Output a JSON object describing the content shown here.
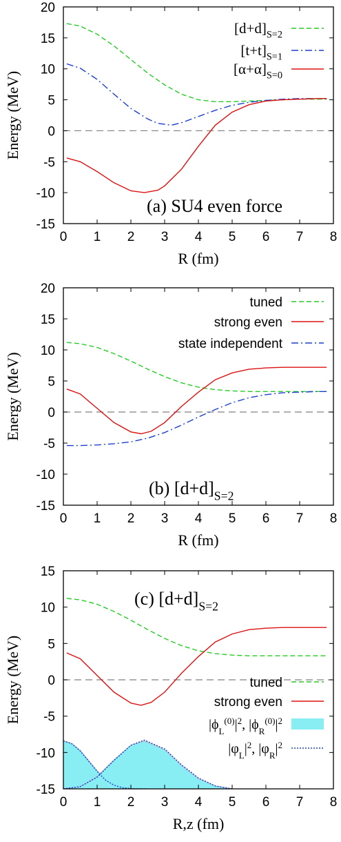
{
  "chart_data": [
    {
      "type": "line",
      "panel_label": "(a) SU4 even force",
      "xlabel": "R (fm)",
      "ylabel": "Energy (MeV)",
      "xlim": [
        0,
        8
      ],
      "ylim": [
        -15,
        20
      ],
      "xticks": [
        "0",
        "1",
        "2",
        "3",
        "4",
        "5",
        "6",
        "7",
        "8"
      ],
      "yticks": [
        "20",
        "15",
        "10",
        "5",
        "0",
        "-5",
        "-10",
        "-15"
      ],
      "legend_position": "top-right",
      "reference_line": {
        "y": 0,
        "style": "dashed",
        "color": "#808080"
      },
      "series": [
        {
          "name": "[d+d]",
          "name_subscript": "S=2",
          "color": "#22cc22",
          "dash": "dashed",
          "x": [
            0.1,
            0.5,
            1.0,
            1.5,
            2.0,
            2.5,
            3.0,
            3.5,
            4.0,
            4.5,
            5.0,
            5.5,
            6.0,
            6.5,
            7.0,
            7.5,
            7.8
          ],
          "y": [
            17.3,
            16.9,
            15.6,
            13.7,
            11.5,
            9.3,
            7.4,
            5.9,
            5.0,
            4.7,
            4.7,
            4.8,
            4.9,
            5.0,
            5.1,
            5.1,
            5.1
          ]
        },
        {
          "name": "[t+t]",
          "name_subscript": "S=1",
          "color": "#1a3fd0",
          "dash": "dashdot",
          "x": [
            0.1,
            0.5,
            1.0,
            1.5,
            2.0,
            2.5,
            2.8,
            3.2,
            3.5,
            4.0,
            4.5,
            5.0,
            5.5,
            6.0,
            6.5,
            7.0,
            7.5,
            7.8
          ],
          "y": [
            10.8,
            10.1,
            8.3,
            5.9,
            3.6,
            1.9,
            1.2,
            0.9,
            1.3,
            2.3,
            3.3,
            4.1,
            4.6,
            4.9,
            5.1,
            5.2,
            5.2,
            5.2
          ]
        },
        {
          "name": "[α+α]",
          "name_subscript": "S=0",
          "color": "#dd1111",
          "dash": "solid",
          "x": [
            0.1,
            0.5,
            1.0,
            1.5,
            2.0,
            2.4,
            2.8,
            3.0,
            3.5,
            4.0,
            4.5,
            5.0,
            5.5,
            6.0,
            6.5,
            7.0,
            7.5,
            7.8
          ],
          "y": [
            -4.4,
            -5.0,
            -6.6,
            -8.4,
            -9.7,
            -10.0,
            -9.6,
            -8.9,
            -6.2,
            -2.5,
            0.9,
            3.0,
            4.2,
            4.8,
            5.0,
            5.1,
            5.2,
            5.2
          ]
        }
      ]
    },
    {
      "type": "line",
      "panel_label": "(b) [d+d]",
      "panel_label_subscript": "S=2",
      "xlabel": "R (fm)",
      "ylabel": "Energy (MeV)",
      "xlim": [
        0,
        8
      ],
      "ylim": [
        -15,
        20
      ],
      "xticks": [
        "0",
        "1",
        "2",
        "3",
        "4",
        "5",
        "6",
        "7",
        "8"
      ],
      "yticks": [
        "20",
        "15",
        "10",
        "5",
        "0",
        "-5",
        "-10",
        "-15"
      ],
      "legend_position": "top-right",
      "reference_line": {
        "y": 0,
        "style": "dashed",
        "color": "#808080"
      },
      "series": [
        {
          "name": "tuned",
          "color": "#22cc22",
          "dash": "dashed",
          "x": [
            0.1,
            0.5,
            1.0,
            1.5,
            2.0,
            2.5,
            3.0,
            3.5,
            4.0,
            4.5,
            5.0,
            5.5,
            6.0,
            6.5,
            7.0,
            7.5,
            7.8
          ],
          "y": [
            11.2,
            11.0,
            10.4,
            9.4,
            8.2,
            6.9,
            5.7,
            4.7,
            4.0,
            3.6,
            3.4,
            3.3,
            3.3,
            3.3,
            3.3,
            3.3,
            3.3
          ]
        },
        {
          "name": "strong even",
          "color": "#dd1111",
          "dash": "solid",
          "x": [
            0.1,
            0.5,
            1.0,
            1.5,
            2.0,
            2.3,
            2.6,
            3.0,
            3.5,
            4.0,
            4.5,
            5.0,
            5.5,
            6.0,
            6.5,
            7.0,
            7.5,
            7.8
          ],
          "y": [
            3.7,
            2.9,
            0.6,
            -1.7,
            -3.2,
            -3.5,
            -3.1,
            -1.7,
            0.9,
            3.2,
            5.2,
            6.3,
            6.9,
            7.1,
            7.2,
            7.2,
            7.2,
            7.2
          ]
        },
        {
          "name": "state independent",
          "color": "#1a3fd0",
          "dash": "dashdot",
          "x": [
            0.1,
            0.5,
            1.0,
            1.5,
            2.0,
            2.5,
            3.0,
            3.5,
            4.0,
            4.5,
            5.0,
            5.5,
            6.0,
            6.5,
            7.0,
            7.5,
            7.8
          ],
          "y": [
            -5.4,
            -5.4,
            -5.3,
            -5.1,
            -4.8,
            -4.2,
            -3.3,
            -2.1,
            -0.8,
            0.4,
            1.5,
            2.3,
            2.8,
            3.1,
            3.2,
            3.3,
            3.3
          ]
        }
      ]
    },
    {
      "type": "line",
      "panel_label": "(c) [d+d]",
      "panel_label_subscript": "S=2",
      "xlabel": "R,z (fm)",
      "ylabel": "Energy (MeV)",
      "xlim": [
        0,
        8
      ],
      "ylim": [
        -15,
        15
      ],
      "xticks": [
        "0",
        "1",
        "2",
        "3",
        "4",
        "5",
        "6",
        "7",
        "8"
      ],
      "yticks": [
        "15",
        "10",
        "5",
        "0",
        "-5",
        "-10",
        "-15"
      ],
      "legend_position": "bottom-right",
      "reference_line": {
        "y": 0,
        "style": "dashed",
        "color": "#808080"
      },
      "series": [
        {
          "name": "tuned",
          "color": "#22cc22",
          "dash": "dashed",
          "x": [
            0.1,
            0.5,
            1.0,
            1.5,
            2.0,
            2.5,
            3.0,
            3.5,
            4.0,
            4.5,
            5.0,
            5.5,
            6.0,
            6.5,
            7.0,
            7.5,
            7.8
          ],
          "y": [
            11.2,
            11.0,
            10.4,
            9.4,
            8.2,
            6.9,
            5.7,
            4.7,
            4.0,
            3.6,
            3.4,
            3.3,
            3.3,
            3.3,
            3.3,
            3.3,
            3.3
          ]
        },
        {
          "name": "strong even",
          "color": "#dd1111",
          "dash": "solid",
          "x": [
            0.1,
            0.5,
            1.0,
            1.5,
            2.0,
            2.3,
            2.6,
            3.0,
            3.5,
            4.0,
            4.5,
            5.0,
            5.5,
            6.0,
            6.5,
            7.0,
            7.5,
            7.8
          ],
          "y": [
            3.7,
            2.9,
            0.6,
            -1.7,
            -3.2,
            -3.5,
            -3.1,
            -1.7,
            0.9,
            3.2,
            5.2,
            6.3,
            6.9,
            7.1,
            7.2,
            7.2,
            7.2,
            7.2
          ]
        },
        {
          "name": "|ϕL(0)|2, |ϕR(0)|2",
          "color": "#88eef4",
          "dash": "filled",
          "areas": [
            {
              "x": [
                0.0,
                0.25,
                0.5,
                0.75,
                1.0,
                1.25,
                1.5,
                1.75,
                2.0,
                2.25,
                2.5
              ],
              "y": [
                -8.4,
                -8.75,
                -9.7,
                -11.1,
                -12.5,
                -13.7,
                -14.4,
                -14.8,
                -14.95,
                -15.0,
                -15.0
              ]
            },
            {
              "x": [
                0.0,
                0.5,
                1.0,
                1.5,
                2.0,
                2.4,
                3.0,
                3.5,
                4.0,
                4.5,
                5.0
              ],
              "y": [
                -15.0,
                -14.7,
                -13.3,
                -11.0,
                -9.0,
                -8.4,
                -9.6,
                -11.8,
                -13.6,
                -14.6,
                -15.0
              ]
            }
          ]
        },
        {
          "name": "|φL|2, |φR|2",
          "color": "#1a3fd0",
          "dash": "dotted",
          "curves": [
            {
              "x": [
                0.0,
                0.25,
                0.5,
                0.75,
                1.0,
                1.25,
                1.5,
                1.75,
                2.0,
                2.25,
                2.5
              ],
              "y": [
                -8.4,
                -8.8,
                -9.8,
                -11.2,
                -12.6,
                -13.8,
                -14.5,
                -14.85,
                -14.95,
                -15.0,
                -15.0
              ]
            },
            {
              "x": [
                0.0,
                0.5,
                1.0,
                1.5,
                2.0,
                2.4,
                3.0,
                3.5,
                4.0,
                4.5,
                5.0
              ],
              "y": [
                -15.0,
                -14.7,
                -13.4,
                -11.1,
                -9.0,
                -8.3,
                -9.5,
                -11.7,
                -13.5,
                -14.6,
                -15.0
              ]
            }
          ]
        }
      ]
    }
  ]
}
